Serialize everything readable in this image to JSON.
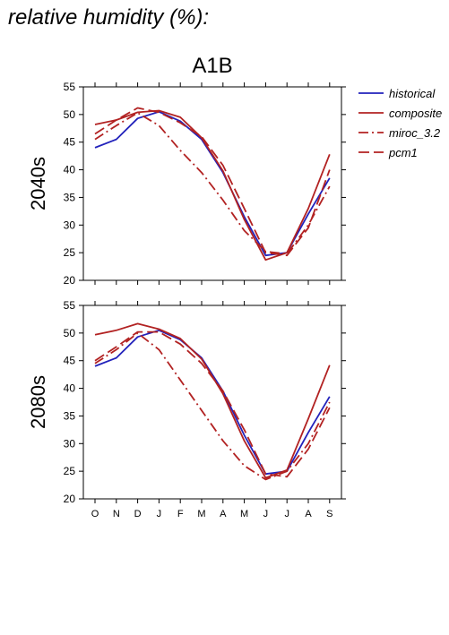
{
  "header": {
    "title": "relative humidity (%):"
  },
  "scenario": "A1B",
  "colors": {
    "historical": "#2222bb",
    "model": "#b22222",
    "axis": "#000000"
  },
  "legend": [
    {
      "name": "historical",
      "color": "#2222bb",
      "style": "solid"
    },
    {
      "name": "composite",
      "color": "#b22222",
      "style": "solid"
    },
    {
      "name": "miroc_3.2",
      "color": "#b22222",
      "style": "dashdot"
    },
    {
      "name": "pcm1",
      "color": "#b22222",
      "style": "dashed"
    }
  ],
  "chart_data": [
    {
      "type": "line",
      "title": "A1B",
      "ylabel": "2040s",
      "xlabel": "",
      "categories": [
        "O",
        "N",
        "D",
        "J",
        "F",
        "M",
        "A",
        "M",
        "J",
        "J",
        "A",
        "S"
      ],
      "ylim": [
        20,
        55
      ],
      "yticks": [
        20,
        25,
        30,
        35,
        40,
        45,
        50,
        55
      ],
      "grid": false,
      "legend_position": "right",
      "series": [
        {
          "name": "historical",
          "style": "solid",
          "color": "#2222bb",
          "values": [
            44.0,
            45.5,
            49.3,
            50.5,
            48.8,
            45.5,
            39.5,
            31.5,
            24.5,
            25.0,
            32.0,
            38.5
          ]
        },
        {
          "name": "composite",
          "style": "solid",
          "color": "#b22222",
          "values": [
            48.2,
            49.0,
            50.4,
            50.7,
            49.5,
            45.8,
            39.8,
            31.0,
            23.7,
            25.0,
            33.0,
            42.8
          ]
        },
        {
          "name": "miroc_3.2",
          "style": "dashdot",
          "color": "#b22222",
          "values": [
            45.5,
            48.0,
            50.3,
            48.0,
            43.5,
            39.5,
            34.5,
            29.0,
            25.2,
            24.8,
            30.0,
            37.0
          ]
        },
        {
          "name": "pcm1",
          "style": "dashed",
          "color": "#b22222",
          "values": [
            46.5,
            49.0,
            51.2,
            50.4,
            48.5,
            46.0,
            40.8,
            33.0,
            25.0,
            24.5,
            29.5,
            40.0
          ]
        }
      ]
    },
    {
      "type": "line",
      "title": "",
      "ylabel": "2080s",
      "xlabel": "",
      "categories": [
        "O",
        "N",
        "D",
        "J",
        "F",
        "M",
        "A",
        "M",
        "J",
        "J",
        "A",
        "S"
      ],
      "ylim": [
        20,
        55
      ],
      "yticks": [
        20,
        25,
        30,
        35,
        40,
        45,
        50,
        55
      ],
      "grid": false,
      "series": [
        {
          "name": "historical",
          "style": "solid",
          "color": "#2222bb",
          "values": [
            44.0,
            45.5,
            49.3,
            50.5,
            48.8,
            45.5,
            39.5,
            31.5,
            24.5,
            25.0,
            32.0,
            38.5
          ]
        },
        {
          "name": "composite",
          "style": "solid",
          "color": "#b22222",
          "values": [
            49.7,
            50.5,
            51.7,
            50.7,
            49.0,
            45.3,
            39.0,
            30.5,
            23.8,
            25.2,
            34.5,
            44.2
          ]
        },
        {
          "name": "miroc_3.2",
          "style": "dashdot",
          "color": "#b22222",
          "values": [
            44.5,
            47.0,
            50.0,
            47.0,
            41.5,
            36.0,
            30.5,
            26.0,
            23.5,
            25.0,
            30.0,
            37.5
          ]
        },
        {
          "name": "pcm1",
          "style": "dashed",
          "color": "#b22222",
          "values": [
            45.0,
            47.5,
            50.2,
            50.2,
            48.0,
            44.5,
            39.5,
            32.5,
            24.5,
            24.0,
            29.0,
            36.5
          ]
        }
      ]
    }
  ]
}
